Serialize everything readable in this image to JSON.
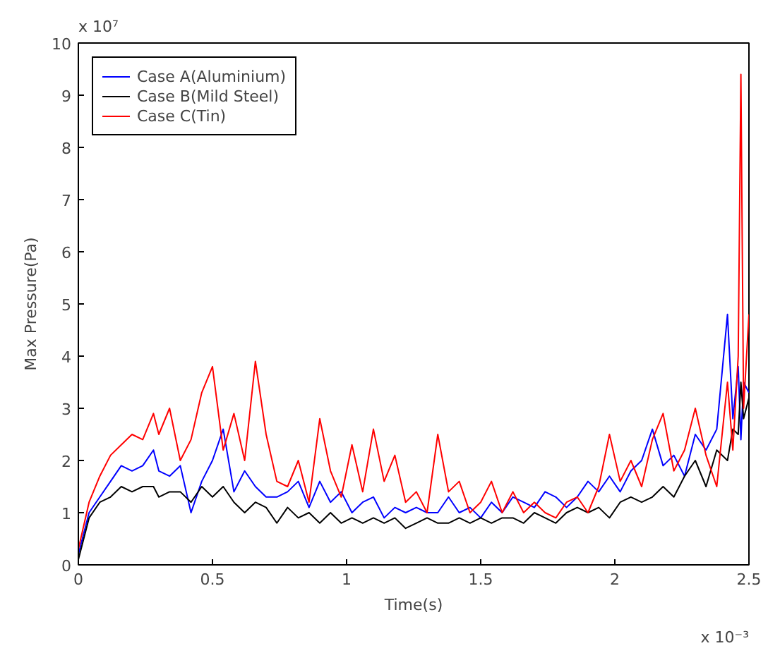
{
  "chart_data": {
    "type": "line",
    "xlabel": "Time(s)",
    "ylabel": "Max Pressure(Pa)",
    "annotations": [
      "x 10⁷",
      "x 10⁻³"
    ],
    "x": [
      0,
      0.04,
      0.08,
      0.12,
      0.16,
      0.2,
      0.24,
      0.28,
      0.3,
      0.34,
      0.38,
      0.42,
      0.46,
      0.5,
      0.54,
      0.58,
      0.62,
      0.66,
      0.7,
      0.74,
      0.78,
      0.82,
      0.86,
      0.9,
      0.94,
      0.98,
      1.02,
      1.06,
      1.1,
      1.14,
      1.18,
      1.22,
      1.26,
      1.3,
      1.34,
      1.38,
      1.42,
      1.46,
      1.5,
      1.54,
      1.58,
      1.62,
      1.66,
      1.7,
      1.74,
      1.78,
      1.82,
      1.86,
      1.9,
      1.94,
      1.98,
      2.02,
      2.06,
      2.1,
      2.14,
      2.18,
      2.22,
      2.26,
      2.3,
      2.34,
      2.38,
      2.42,
      2.44,
      2.46,
      2.47,
      2.48,
      2.5
    ],
    "series": [
      {
        "name": "Case A(Aluminium)",
        "color": "#0000ff",
        "values": [
          0.2,
          1.0,
          1.3,
          1.6,
          1.9,
          1.8,
          1.9,
          2.2,
          1.8,
          1.7,
          1.9,
          1.0,
          1.6,
          2.0,
          2.6,
          1.4,
          1.8,
          1.5,
          1.3,
          1.3,
          1.4,
          1.6,
          1.1,
          1.6,
          1.2,
          1.4,
          1.0,
          1.2,
          1.3,
          0.9,
          1.1,
          1.0,
          1.1,
          1.0,
          1.0,
          1.3,
          1.0,
          1.1,
          0.9,
          1.2,
          1.0,
          1.3,
          1.2,
          1.1,
          1.4,
          1.3,
          1.1,
          1.3,
          1.6,
          1.4,
          1.7,
          1.4,
          1.8,
          2.0,
          2.6,
          1.9,
          2.1,
          1.7,
          2.5,
          2.2,
          2.6,
          4.8,
          2.8,
          3.8,
          2.4,
          3.5,
          3.3
        ]
      },
      {
        "name": "Case B(Mild Steel)",
        "color": "#000000",
        "values": [
          0.1,
          0.9,
          1.2,
          1.3,
          1.5,
          1.4,
          1.5,
          1.5,
          1.3,
          1.4,
          1.4,
          1.2,
          1.5,
          1.3,
          1.5,
          1.2,
          1.0,
          1.2,
          1.1,
          0.8,
          1.1,
          0.9,
          1.0,
          0.8,
          1.0,
          0.8,
          0.9,
          0.8,
          0.9,
          0.8,
          0.9,
          0.7,
          0.8,
          0.9,
          0.8,
          0.8,
          0.9,
          0.8,
          0.9,
          0.8,
          0.9,
          0.9,
          0.8,
          1.0,
          0.9,
          0.8,
          1.0,
          1.1,
          1.0,
          1.1,
          0.9,
          1.2,
          1.3,
          1.2,
          1.3,
          1.5,
          1.3,
          1.7,
          2.0,
          1.5,
          2.2,
          2.0,
          2.6,
          2.5,
          3.5,
          2.8,
          3.2
        ]
      },
      {
        "name": "Case C(Tin)",
        "color": "#ff0000",
        "values": [
          0.3,
          1.2,
          1.7,
          2.1,
          2.3,
          2.5,
          2.4,
          2.9,
          2.5,
          3.0,
          2.0,
          2.4,
          3.3,
          3.8,
          2.2,
          2.9,
          2.0,
          3.9,
          2.5,
          1.6,
          1.5,
          2.0,
          1.2,
          2.8,
          1.8,
          1.3,
          2.3,
          1.4,
          2.6,
          1.6,
          2.1,
          1.2,
          1.4,
          1.0,
          2.5,
          1.4,
          1.6,
          1.0,
          1.2,
          1.6,
          1.0,
          1.4,
          1.0,
          1.2,
          1.0,
          0.9,
          1.2,
          1.3,
          1.0,
          1.5,
          2.5,
          1.6,
          2.0,
          1.5,
          2.4,
          2.9,
          1.8,
          2.2,
          3.0,
          2.1,
          1.5,
          3.5,
          2.2,
          4.0,
          9.4,
          3.0,
          4.8
        ]
      }
    ],
    "xlim": [
      0,
      2.5
    ],
    "xticks": [
      0,
      0.5,
      1,
      1.5,
      2,
      2.5
    ],
    "ylim": [
      0,
      10
    ],
    "yticks": [
      0,
      1,
      2,
      3,
      4,
      5,
      6,
      7,
      8,
      9,
      10
    ],
    "grid": false,
    "legend": "top left",
    "line_style": "solid",
    "marker": "none"
  }
}
